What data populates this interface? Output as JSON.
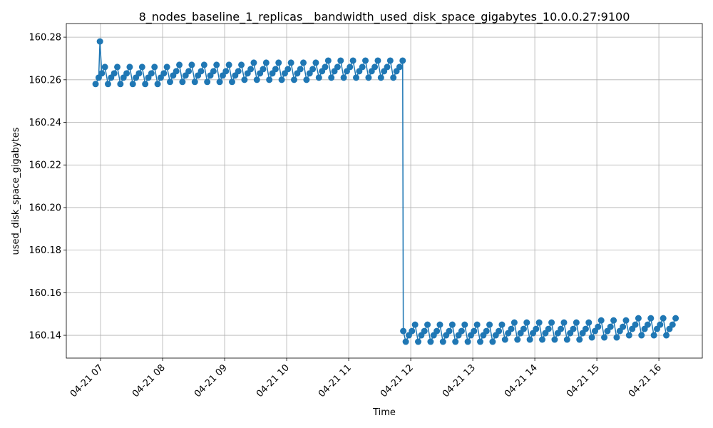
{
  "chart_data": {
    "type": "line",
    "title": "8_nodes_baseline_1_replicas__bandwidth_used_disk_space_gigabytes_10.0.0.27:9100",
    "x_label": "Time",
    "y_label": "used_disk_space_gigabytes",
    "xlim": [
      6.448,
      16.7
    ],
    "ylim": [
      160.1293,
      160.2864
    ],
    "xticks": [
      {
        "value": 7,
        "label": "04-21 07"
      },
      {
        "value": 8,
        "label": "04-21 08"
      },
      {
        "value": 9,
        "label": "04-21 09"
      },
      {
        "value": 10,
        "label": "04-21 10"
      },
      {
        "value": 11,
        "label": "04-21 11"
      },
      {
        "value": 12,
        "label": "04-21 12"
      },
      {
        "value": 13,
        "label": "04-21 13"
      },
      {
        "value": 14,
        "label": "04-21 14"
      },
      {
        "value": 15,
        "label": "04-21 15"
      },
      {
        "value": 16,
        "label": "04-21 16"
      }
    ],
    "yticks": [
      {
        "value": 160.14,
        "label": "160.14"
      },
      {
        "value": 160.16,
        "label": "160.16"
      },
      {
        "value": 160.18,
        "label": "160.18"
      },
      {
        "value": 160.2,
        "label": "160.20"
      },
      {
        "value": 160.22,
        "label": "160.22"
      },
      {
        "value": 160.24,
        "label": "160.24"
      },
      {
        "value": 160.26,
        "label": "160.26"
      },
      {
        "value": 160.28,
        "label": "160.28"
      }
    ],
    "grid": true,
    "x": [
      6.92,
      6.97,
      6.99,
      7.02,
      7.07,
      7.12,
      7.17,
      7.22,
      7.27,
      7.32,
      7.37,
      7.42,
      7.47,
      7.52,
      7.57,
      7.62,
      7.67,
      7.72,
      7.77,
      7.82,
      7.87,
      7.92,
      7.97,
      8.02,
      8.07,
      8.12,
      8.17,
      8.22,
      8.27,
      8.32,
      8.37,
      8.42,
      8.47,
      8.52,
      8.57,
      8.62,
      8.67,
      8.72,
      8.77,
      8.82,
      8.87,
      8.92,
      8.97,
      9.02,
      9.07,
      9.12,
      9.17,
      9.22,
      9.27,
      9.32,
      9.37,
      9.42,
      9.47,
      9.52,
      9.57,
      9.62,
      9.67,
      9.72,
      9.77,
      9.82,
      9.87,
      9.92,
      9.97,
      10.02,
      10.07,
      10.12,
      10.17,
      10.22,
      10.27,
      10.32,
      10.37,
      10.42,
      10.47,
      10.52,
      10.57,
      10.62,
      10.67,
      10.72,
      10.77,
      10.82,
      10.87,
      10.92,
      10.97,
      11.02,
      11.07,
      11.12,
      11.17,
      11.22,
      11.27,
      11.32,
      11.37,
      11.42,
      11.47,
      11.52,
      11.57,
      11.62,
      11.67,
      11.72,
      11.77,
      11.82,
      11.87,
      11.88,
      11.92,
      11.97,
      12.02,
      12.07,
      12.12,
      12.17,
      12.22,
      12.27,
      12.32,
      12.37,
      12.42,
      12.47,
      12.52,
      12.57,
      12.62,
      12.67,
      12.72,
      12.77,
      12.82,
      12.87,
      12.92,
      12.97,
      13.02,
      13.07,
      13.12,
      13.17,
      13.22,
      13.27,
      13.32,
      13.37,
      13.42,
      13.47,
      13.52,
      13.57,
      13.62,
      13.67,
      13.72,
      13.77,
      13.82,
      13.87,
      13.92,
      13.97,
      14.02,
      14.07,
      14.12,
      14.17,
      14.22,
      14.27,
      14.32,
      14.37,
      14.42,
      14.47,
      14.52,
      14.57,
      14.62,
      14.67,
      14.72,
      14.77,
      14.82,
      14.87,
      14.92,
      14.97,
      15.02,
      15.07,
      15.12,
      15.17,
      15.22,
      15.27,
      15.32,
      15.37,
      15.42,
      15.47,
      15.52,
      15.57,
      15.62,
      15.67,
      15.72,
      15.77,
      15.82,
      15.87,
      15.92,
      15.97,
      16.02,
      16.07,
      16.12,
      16.17,
      16.22,
      16.27
    ],
    "series": [
      {
        "name": "used_disk_space_gigabytes",
        "color": "#1f77b4",
        "values": [
          160.258,
          160.261,
          160.278,
          160.263,
          160.266,
          160.258,
          160.261,
          160.263,
          160.266,
          160.258,
          160.261,
          160.263,
          160.266,
          160.258,
          160.261,
          160.263,
          160.266,
          160.258,
          160.261,
          160.263,
          160.266,
          160.258,
          160.261,
          160.263,
          160.266,
          160.259,
          160.262,
          160.264,
          160.267,
          160.259,
          160.262,
          160.264,
          160.267,
          160.259,
          160.262,
          160.264,
          160.267,
          160.259,
          160.262,
          160.264,
          160.267,
          160.259,
          160.262,
          160.264,
          160.267,
          160.259,
          160.262,
          160.264,
          160.267,
          160.26,
          160.263,
          160.265,
          160.268,
          160.26,
          160.263,
          160.265,
          160.268,
          160.26,
          160.263,
          160.265,
          160.268,
          160.26,
          160.263,
          160.265,
          160.268,
          160.26,
          160.263,
          160.265,
          160.268,
          160.26,
          160.263,
          160.265,
          160.268,
          160.261,
          160.264,
          160.266,
          160.269,
          160.261,
          160.264,
          160.266,
          160.269,
          160.261,
          160.264,
          160.266,
          160.269,
          160.261,
          160.264,
          160.266,
          160.269,
          160.261,
          160.264,
          160.266,
          160.269,
          160.261,
          160.264,
          160.266,
          160.269,
          160.261,
          160.264,
          160.266,
          160.269,
          160.142,
          160.137,
          160.14,
          160.142,
          160.145,
          160.137,
          160.14,
          160.142,
          160.145,
          160.137,
          160.14,
          160.142,
          160.145,
          160.137,
          160.14,
          160.142,
          160.145,
          160.137,
          160.14,
          160.142,
          160.145,
          160.137,
          160.14,
          160.142,
          160.145,
          160.137,
          160.14,
          160.142,
          160.145,
          160.137,
          160.14,
          160.142,
          160.145,
          160.138,
          160.141,
          160.143,
          160.146,
          160.138,
          160.141,
          160.143,
          160.146,
          160.138,
          160.141,
          160.143,
          160.146,
          160.138,
          160.141,
          160.143,
          160.146,
          160.138,
          160.141,
          160.143,
          160.146,
          160.138,
          160.141,
          160.143,
          160.146,
          160.138,
          160.141,
          160.143,
          160.146,
          160.139,
          160.142,
          160.144,
          160.147,
          160.139,
          160.142,
          160.144,
          160.147,
          160.139,
          160.142,
          160.144,
          160.147,
          160.14,
          160.143,
          160.145,
          160.148,
          160.14,
          160.143,
          160.145,
          160.148,
          160.14,
          160.143,
          160.145,
          160.148,
          160.14,
          160.143,
          160.145,
          160.148
        ]
      }
    ]
  }
}
